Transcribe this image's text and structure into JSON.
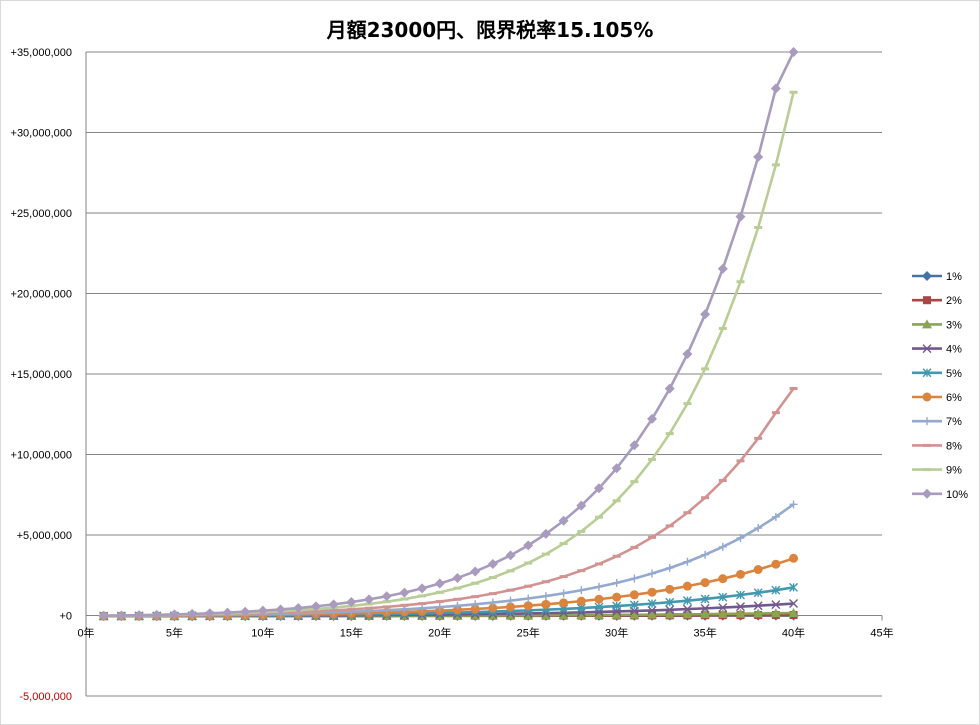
{
  "chart_data": {
    "type": "line",
    "title": "月額23000円、限界税率15.105%",
    "xlabel": "",
    "ylabel": "",
    "xlim": [
      0,
      45
    ],
    "ylim": [
      -5000000,
      35000000
    ],
    "x_tick_labels": [
      "0年",
      "5年",
      "10年",
      "15年",
      "20年",
      "25年",
      "30年",
      "35年",
      "40年",
      "45年"
    ],
    "y_tick_labels": [
      "-5,000,000",
      "+0",
      "+5,000,000",
      "+10,000,000",
      "+15,000,000",
      "+20,000,000",
      "+25,000,000",
      "+30,000,000",
      "+35,000,000"
    ],
    "grid": "horizontal",
    "legend_position": "right",
    "x": [
      1,
      2,
      3,
      4,
      5,
      6,
      7,
      8,
      9,
      10,
      11,
      12,
      13,
      14,
      15,
      16,
      17,
      18,
      19,
      20,
      21,
      22,
      23,
      24,
      25,
      26,
      27,
      28,
      29,
      30,
      31,
      32,
      33,
      34,
      35,
      36,
      37,
      38,
      39,
      40
    ],
    "series": [
      {
        "name": "1%",
        "color": "#4572a7",
        "marker": "diamond",
        "values": [
          -42000,
          -41000,
          -40000,
          -39000,
          -38000,
          -37000,
          -36000,
          -35000,
          -34000,
          -33000,
          -32000,
          -31000,
          -30000,
          -29000,
          -28000,
          -27000,
          -26000,
          -25000,
          -24000,
          -23000,
          -22000,
          -21000,
          -20000,
          -19000,
          -18000,
          -17000,
          -16000,
          -15000,
          -14000,
          -13000,
          -12000,
          -11000,
          -10000,
          -9000,
          -8000,
          -7000,
          -6000,
          -5000,
          -4000,
          -3000
        ]
      },
      {
        "name": "2%",
        "color": "#aa4643",
        "marker": "square",
        "values": [
          -42000,
          -41000,
          -40000,
          -39000,
          -38000,
          -37000,
          -36000,
          -35000,
          -34000,
          -33000,
          -32000,
          -31000,
          -30000,
          -29000,
          -28000,
          -27000,
          -26000,
          -24000,
          -22000,
          -20000,
          -18000,
          -16000,
          -14000,
          -12000,
          -10000,
          -8000,
          -6000,
          -4000,
          -2000,
          0,
          3000,
          6000,
          9000,
          12000,
          15000,
          18000,
          21000,
          24000,
          27000,
          30000
        ]
      },
      {
        "name": "3%",
        "color": "#89a54e",
        "marker": "triangle",
        "values": [
          -40000,
          -39000,
          -38000,
          -37000,
          -36000,
          -35000,
          -34000,
          -33000,
          -32000,
          -31000,
          -29000,
          -27000,
          -25000,
          -23000,
          -21000,
          -19000,
          -17000,
          -14000,
          -11000,
          -8000,
          -5000,
          -2000,
          2000,
          6000,
          10000,
          15000,
          20000,
          26000,
          32000,
          39000,
          47000,
          55000,
          64000,
          74000,
          85000,
          97000,
          110000,
          124000,
          139000,
          155000
        ]
      },
      {
        "name": "4%",
        "color": "#71588f",
        "marker": "x",
        "values": [
          -38000,
          -36000,
          -34000,
          -32000,
          -30000,
          -28000,
          -25000,
          -22000,
          -19000,
          -16000,
          -12000,
          -8000,
          -3000,
          2000,
          8000,
          15000,
          23000,
          32000,
          42000,
          53000,
          65000,
          78000,
          93000,
          110000,
          128000,
          148000,
          170000,
          194000,
          221000,
          250000,
          282000,
          317000,
          355000,
          397000,
          443000,
          493000,
          548000,
          608000,
          673000,
          744000
        ]
      },
      {
        "name": "5%",
        "color": "#4198af",
        "marker": "asterisk",
        "values": [
          -35000,
          -32000,
          -29000,
          -26000,
          -22000,
          -18000,
          -13000,
          -8000,
          -2000,
          5000,
          13000,
          22000,
          33000,
          45000,
          59000,
          74000,
          91000,
          110000,
          131000,
          155000,
          181000,
          210000,
          242000,
          278000,
          318000,
          362000,
          410000,
          463000,
          522000,
          587000,
          659000,
          738000,
          825000,
          921000,
          1027000,
          1144000,
          1273000,
          1416000,
          1574000,
          1748000
        ]
      },
      {
        "name": "6%",
        "color": "#db843d",
        "marker": "circle",
        "values": [
          -30000,
          -26000,
          -21000,
          -16000,
          -10000,
          -3000,
          5000,
          15000,
          26000,
          38000,
          52000,
          68000,
          86000,
          107000,
          131000,
          158000,
          188000,
          222000,
          260000,
          303000,
          351000,
          405000,
          465000,
          533000,
          609000,
          693000,
          787000,
          892000,
          1010000,
          1140000,
          1285000,
          1446000,
          1625000,
          1823000,
          2043000,
          2287000,
          2557000,
          2856000,
          3187000,
          3553000
        ]
      },
      {
        "name": "7%",
        "color": "#93a9cf",
        "marker": "plus",
        "values": [
          -25000,
          -19000,
          -12000,
          -4000,
          5000,
          16000,
          29000,
          44000,
          61000,
          81000,
          104000,
          130000,
          160000,
          194000,
          233000,
          277000,
          327000,
          384000,
          449000,
          521000,
          604000,
          697000,
          803000,
          922000,
          1056000,
          1207000,
          1377000,
          1569000,
          1785000,
          2027000,
          2300000,
          2607000,
          2952000,
          3339000,
          3775000,
          4264000,
          4814000,
          5432000,
          6126000,
          6906000
        ]
      },
      {
        "name": "8%",
        "color": "#d19392",
        "marker": "dash",
        "values": [
          -20000,
          -12000,
          -2000,
          10000,
          24000,
          40000,
          60000,
          82000,
          108000,
          139000,
          174000,
          215000,
          262000,
          317000,
          380000,
          452000,
          535000,
          630000,
          739000,
          864000,
          1007000,
          1171000,
          1358000,
          1573000,
          1818000,
          2098000,
          2418000,
          2784000,
          3202000,
          3680000,
          4227000,
          4852000,
          5566000,
          6383000,
          7317000,
          8385000,
          9605000,
          11000000,
          12600000,
          14100000
        ]
      },
      {
        "name": "9%",
        "color": "#b9cd96",
        "marker": "dash",
        "values": [
          -15000,
          -5000,
          8000,
          24000,
          43000,
          66000,
          93000,
          126000,
          165000,
          211000,
          265000,
          329000,
          404000,
          492000,
          595000,
          716000,
          857000,
          1022000,
          1214000,
          1438000,
          1700000,
          2005000,
          2360000,
          2774000,
          3255000,
          3815000,
          4467000,
          5224000,
          6104000,
          7127000,
          8315000,
          9694000,
          11300000,
          13160000,
          15320000,
          17830000,
          20730000,
          24100000,
          27990000,
          32500000
        ]
      },
      {
        "name": "10%",
        "color": "#a99bbd",
        "marker": "diamond",
        "values": [
          -10000,
          3000,
          20000,
          41000,
          67000,
          98000,
          136000,
          181000,
          235000,
          299000,
          375000,
          464000,
          569000,
          692000,
          835000,
          1002000,
          1196000,
          1421000,
          1682000,
          1984000,
          2333000,
          2736000,
          3201000,
          3737000,
          4355000,
          5066000,
          5884000,
          6825000,
          7906000,
          9148000,
          10574000,
          12210000,
          14088000,
          16240000,
          18708000,
          21536000,
          24775000,
          28485000,
          32734000,
          37600000
        ]
      }
    ]
  }
}
